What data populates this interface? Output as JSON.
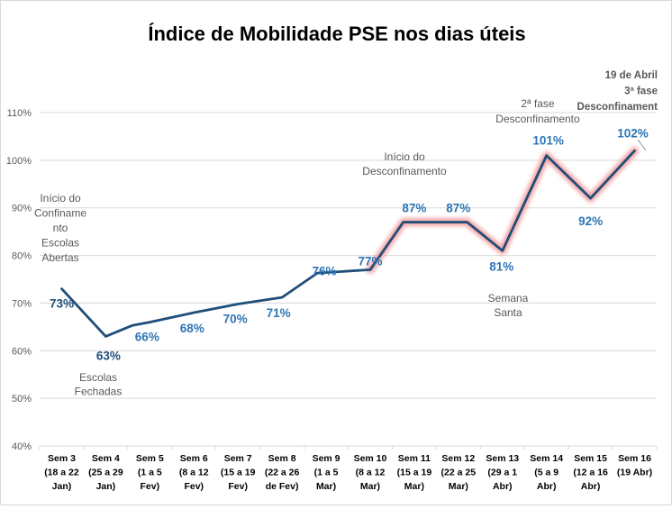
{
  "chart_data": {
    "type": "line",
    "title": "Índice de Mobilidade PSE nos dias úteis",
    "xlabel": "",
    "ylabel": "",
    "ylim": [
      40,
      110
    ],
    "yticks": [
      40,
      50,
      60,
      70,
      80,
      90,
      100,
      110
    ],
    "ytick_labels": [
      "40%",
      "50%",
      "60%",
      "70%",
      "80%",
      "90%",
      "100%",
      "110%"
    ],
    "grid": true,
    "legend": "none",
    "categories": [
      [
        "Sem 3",
        "(18 a 22",
        "Jan)"
      ],
      [
        "Sem 4",
        "(25 a 29",
        "Jan)"
      ],
      [
        "Sem 5",
        "(1 a 5",
        "Fev)"
      ],
      [
        "Sem 6",
        "(8 a 12",
        "Fev)"
      ],
      [
        "Sem 7",
        "(15 a 19",
        "Fev)"
      ],
      [
        "Sem 8",
        "(22 a 26",
        "de Fev)"
      ],
      [
        "Sem 9",
        "(1 a 5",
        "Mar)"
      ],
      [
        "Sem 10",
        "(8 a 12",
        "Mar)"
      ],
      [
        "Sem 11",
        "(15 a 19",
        "Mar)"
      ],
      [
        "Sem 12",
        "(22 a 25",
        "Mar)"
      ],
      [
        "Sem 13",
        "(29 a 1",
        "Abr)"
      ],
      [
        "Sem 14",
        "(5 a 9",
        "Abr)"
      ],
      [
        "Sem 15",
        "(12 a 16",
        "Abr)"
      ],
      [
        "Sem 16",
        "(19 Abr)"
      ]
    ],
    "series": [
      {
        "name": "Índice de Mobilidade PSE",
        "line_color": "#1f4e79",
        "glow_color": "#f4a0a0",
        "highlight_from_index": 7,
        "points": [
          {
            "x": 0,
            "y": 73
          },
          {
            "x": 1,
            "y": 63
          },
          {
            "x": 1.6,
            "y": 65.3
          },
          {
            "x": 2,
            "y": 66
          },
          {
            "x": 3,
            "y": 68
          },
          {
            "x": 4,
            "y": 69.8
          },
          {
            "x": 5,
            "y": 71.2
          },
          {
            "x": 5.8,
            "y": 76.3
          },
          {
            "x": 7,
            "y": 77
          },
          {
            "x": 7.75,
            "y": 87
          },
          {
            "x": 9.2,
            "y": 87
          },
          {
            "x": 10,
            "y": 81
          },
          {
            "x": 11,
            "y": 101
          },
          {
            "x": 12,
            "y": 92
          },
          {
            "x": 13,
            "y": 102
          }
        ],
        "labels": [
          {
            "text": "73%",
            "x": 0,
            "y": 73,
            "color": "#1f4e79"
          },
          {
            "text": "63%",
            "x": 1,
            "y": 63,
            "color": "#1f4e79"
          },
          {
            "text": "66%",
            "x": 2,
            "y": 66,
            "color": "#2e75b6"
          },
          {
            "text": "68%",
            "x": 3,
            "y": 68,
            "color": "#2e75b6"
          },
          {
            "text": "70%",
            "x": 4,
            "y": 70,
            "color": "#2e75b6"
          },
          {
            "text": "71%",
            "x": 5,
            "y": 71,
            "color": "#2e75b6"
          },
          {
            "text": "76%",
            "x": 6,
            "y": 76,
            "color": "#2e75b6"
          },
          {
            "text": "77%",
            "x": 7,
            "y": 77,
            "color": "#2e75b6"
          },
          {
            "text": "87%",
            "x": 8,
            "y": 87,
            "color": "#2e75b6"
          },
          {
            "text": "87%",
            "x": 9,
            "y": 87,
            "color": "#2e75b6"
          },
          {
            "text": "81%",
            "x": 10,
            "y": 81,
            "color": "#2e75b6"
          },
          {
            "text": "101%",
            "x": 11,
            "y": 101,
            "color": "#2e75b6"
          },
          {
            "text": "92%",
            "x": 12,
            "y": 92,
            "color": "#2e75b6"
          },
          {
            "text": "102%",
            "x": 13,
            "y": 102,
            "color": "#2e75b6"
          }
        ]
      }
    ],
    "annotations": [
      {
        "lines": [
          "Início do",
          "Confiname",
          "nto",
          "Escolas",
          "Abertas"
        ],
        "bold": false
      },
      {
        "lines": [
          "Escolas",
          "Fechadas"
        ],
        "bold": false
      },
      {
        "lines": [
          "Início do",
          "Desconfinamento"
        ],
        "bold": false
      },
      {
        "lines": [
          "Semana",
          "Santa"
        ],
        "bold": false
      },
      {
        "lines": [
          "2ª fase",
          "Desconfinamento"
        ],
        "bold": false
      },
      {
        "lines": [
          "19 de Abril",
          "3ª fase",
          "Desconfinament"
        ],
        "bold": true
      }
    ]
  }
}
